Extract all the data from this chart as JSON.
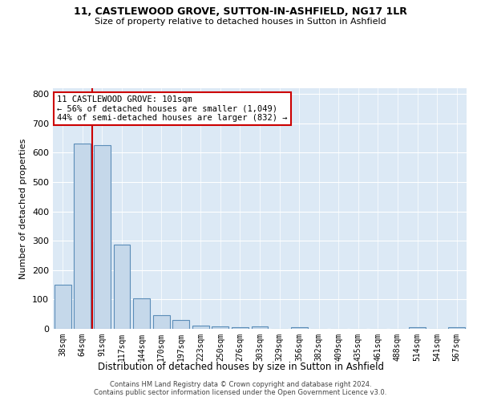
{
  "title1": "11, CASTLEWOOD GROVE, SUTTON-IN-ASHFIELD, NG17 1LR",
  "title2": "Size of property relative to detached houses in Sutton in Ashfield",
  "xlabel": "Distribution of detached houses by size in Sutton in Ashfield",
  "ylabel": "Number of detached properties",
  "footer1": "Contains HM Land Registry data © Crown copyright and database right 2024.",
  "footer2": "Contains public sector information licensed under the Open Government Licence v3.0.",
  "bin_labels": [
    "38sqm",
    "64sqm",
    "91sqm",
    "117sqm",
    "144sqm",
    "170sqm",
    "197sqm",
    "223sqm",
    "250sqm",
    "276sqm",
    "303sqm",
    "329sqm",
    "356sqm",
    "382sqm",
    "409sqm",
    "435sqm",
    "461sqm",
    "488sqm",
    "514sqm",
    "541sqm",
    "567sqm"
  ],
  "bar_values": [
    150,
    632,
    625,
    288,
    103,
    47,
    31,
    11,
    7,
    5,
    8,
    0,
    5,
    0,
    0,
    0,
    0,
    0,
    5,
    0,
    5
  ],
  "bar_color": "#c5d8ea",
  "bar_edge_color": "#5b8db8",
  "red_line_x": 1.5,
  "annotation_text1": "11 CASTLEWOOD GROVE: 101sqm",
  "annotation_text2": "← 56% of detached houses are smaller (1,049)",
  "annotation_text3": "44% of semi-detached houses are larger (832) →",
  "annotation_box_color": "#ffffff",
  "annotation_box_edge": "#cc0000",
  "red_line_color": "#cc0000",
  "background_color": "#dce9f5",
  "ylim": [
    0,
    820
  ],
  "yticks": [
    0,
    100,
    200,
    300,
    400,
    500,
    600,
    700,
    800
  ]
}
